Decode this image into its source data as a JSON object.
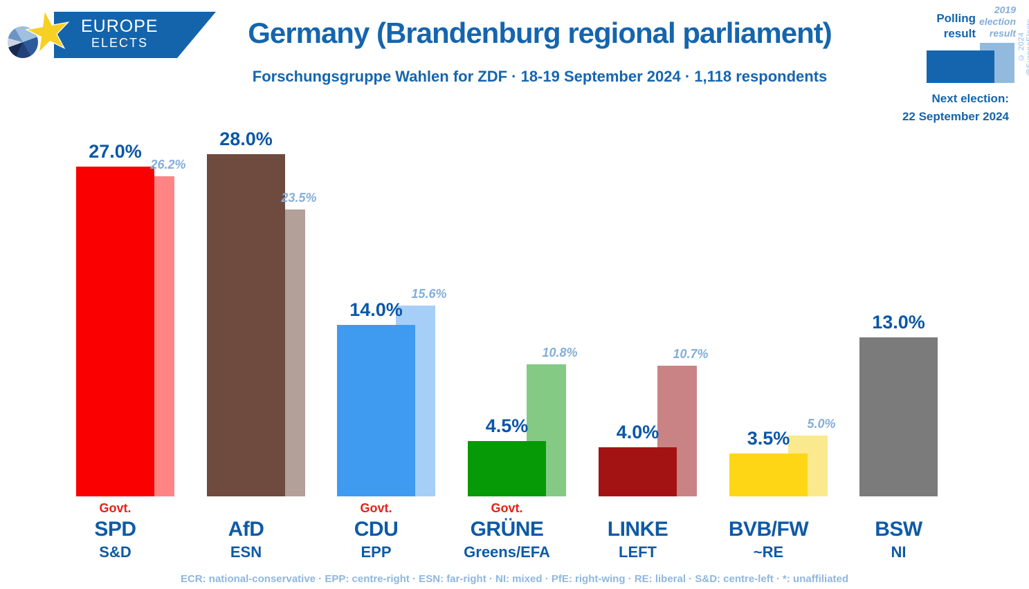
{
  "header": {
    "logo": {
      "line1": "EUROPE",
      "line2": "ELECTS"
    },
    "title": "Germany (Brandenburg regional parliament)",
    "subtitle": "Forschungsgruppe Wahlen for ZDF · 18-19 September 2024 · 1,118 respondents"
  },
  "legend": {
    "polling_label": "Polling result",
    "election_label": "2019 election result",
    "next_election_label": "Next election:",
    "next_election_date": "22 September 2024",
    "copyright": "© 2024 @EuropeElects",
    "polling_color": "#1565ae",
    "election_color": "#92bade"
  },
  "chart_data": {
    "type": "bar",
    "title": "Germany (Brandenburg regional parliament)",
    "categories": [
      "SPD",
      "AfD",
      "CDU",
      "GRÜNE",
      "LINKE",
      "BVB/FW",
      "BSW"
    ],
    "series": [
      {
        "name": "Polling result",
        "values": [
          27.0,
          28.0,
          14.0,
          4.5,
          4.0,
          3.5,
          13.0
        ]
      },
      {
        "name": "2019 election result",
        "values": [
          26.2,
          23.5,
          15.6,
          10.8,
          10.7,
          5.0,
          null
        ]
      }
    ],
    "ylim": [
      0,
      30
    ],
    "grid": false,
    "legend_position": "top-right",
    "value_suffix": "%",
    "govt_label": "Govt.",
    "parties": [
      {
        "name": "SPD",
        "group": "S&D",
        "polling": 27.0,
        "election2019": 26.2,
        "govt": true,
        "color": "#fb0000",
        "prev_color": "#ff8585"
      },
      {
        "name": "AfD",
        "group": "ESN",
        "polling": 28.0,
        "election2019": 23.5,
        "govt": false,
        "color": "#6f4a3e",
        "prev_color": "#b3a098"
      },
      {
        "name": "CDU",
        "group": "EPP",
        "polling": 14.0,
        "election2019": 15.6,
        "govt": true,
        "color": "#3e9bf0",
        "prev_color": "#a6cff7"
      },
      {
        "name": "GRÜNE",
        "group": "Greens/EFA",
        "polling": 4.5,
        "election2019": 10.8,
        "govt": true,
        "color": "#069a06",
        "prev_color": "#84ca84"
      },
      {
        "name": "LINKE",
        "group": "LEFT",
        "polling": 4.0,
        "election2019": 10.7,
        "govt": false,
        "color": "#a31313",
        "prev_color": "#c98384"
      },
      {
        "name": "BVB/FW",
        "group": "~RE",
        "polling": 3.5,
        "election2019": 5.0,
        "govt": false,
        "color": "#ffd616",
        "prev_color": "#fbe98d"
      },
      {
        "name": "BSW",
        "group": "NI",
        "polling": 13.0,
        "election2019": null,
        "govt": false,
        "color": "#7b7b7b",
        "prev_color": null
      }
    ]
  },
  "footer": {
    "legend_text": "ECR: national-conservative · EPP: centre-right · ESN: far-right · NI: mixed · PfE: right-wing · RE: liberal · S&D: centre-left · *: unaffiliated"
  }
}
